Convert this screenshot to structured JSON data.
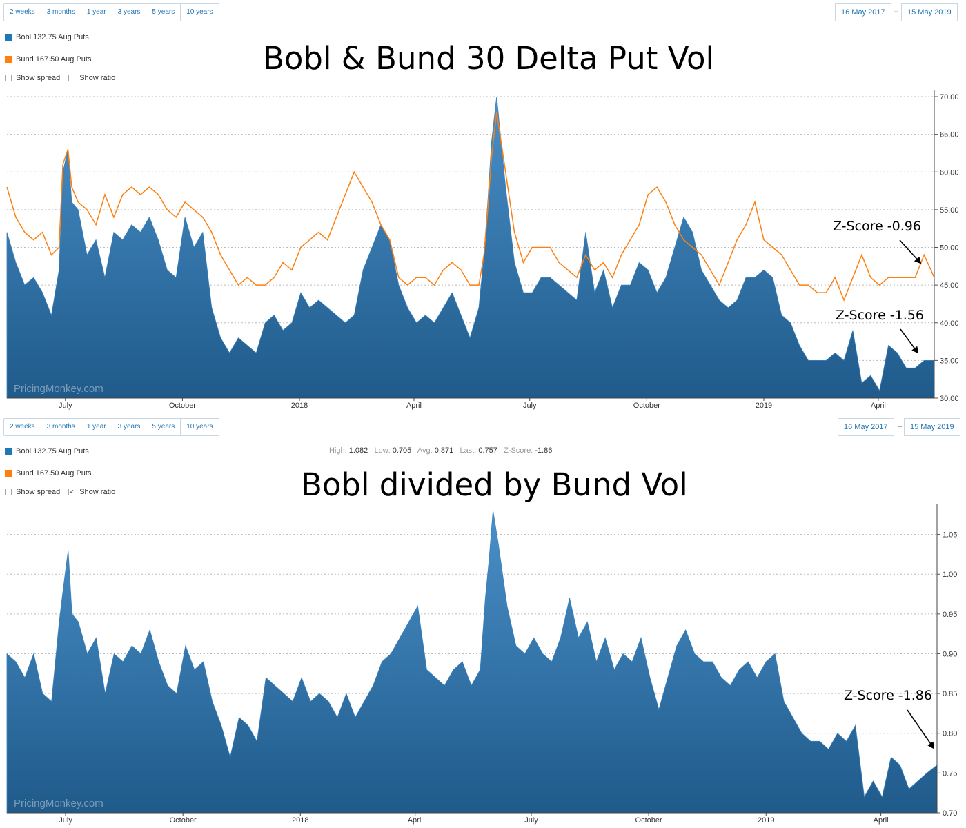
{
  "range_buttons": [
    "2 weeks",
    "3 months",
    "1 year",
    "3 years",
    "5 years",
    "10 years"
  ],
  "dates": {
    "from": "16 May 2017",
    "separator": "–",
    "to": "15 May 2019"
  },
  "legend": [
    {
      "label": "Bobl 132.75 Aug Puts",
      "color": "#1f77b4"
    },
    {
      "label": "Bund 167.50 Aug Puts",
      "color": "#ff7f0e"
    }
  ],
  "checkboxes": {
    "show_spread": "Show spread",
    "show_ratio": "Show ratio",
    "top_spread_checked": false,
    "top_ratio_checked": false,
    "bottom_spread_checked": false,
    "bottom_ratio_checked": true
  },
  "stats": {
    "high_label": "High:",
    "high": "1.082",
    "low_label": "Low:",
    "low": "0.705",
    "avg_label": "Avg:",
    "avg": "0.871",
    "last_label": "Last:",
    "last": "0.757",
    "z_label": "Z-Score:",
    "z": "-1.86"
  },
  "watermark": "PricingMonkey.com",
  "colors": {
    "area_top": "#4a90c9",
    "area_bottom": "#1f5a8a",
    "bund_line": "#ff7f0e",
    "axis": "#555555"
  },
  "chart_data": [
    {
      "type": "area",
      "title": "Bobl & Bund 30 Delta Put Vol",
      "x_tick_labels": [
        "July",
        "October",
        "2018",
        "April",
        "July",
        "October",
        "2019",
        "April"
      ],
      "x_tick_dates": [
        "2017-07-01",
        "2017-10-01",
        "2018-01-01",
        "2018-04-01",
        "2018-07-01",
        "2018-10-01",
        "2019-01-01",
        "2019-04-01"
      ],
      "x_range": [
        "2017-05-16",
        "2019-05-15"
      ],
      "y_ticks": [
        "30.00",
        "35.00",
        "40.00",
        "45.00",
        "50.00",
        "55.00",
        "60.00",
        "65.00",
        "70.00"
      ],
      "ylim": [
        30,
        70
      ],
      "grid": true,
      "annotations": [
        {
          "text": "Z-Score -0.96"
        },
        {
          "text": "Z-Score -1.56"
        }
      ],
      "series": [
        {
          "name": "Bobl 132.75 Aug Puts",
          "kind": "area",
          "dates": [
            "2017-05-16",
            "2017-05-23",
            "2017-05-30",
            "2017-06-06",
            "2017-06-13",
            "2017-06-20",
            "2017-06-26",
            "2017-06-29",
            "2017-07-03",
            "2017-07-06",
            "2017-07-11",
            "2017-07-18",
            "2017-07-25",
            "2017-08-01",
            "2017-08-08",
            "2017-08-15",
            "2017-08-22",
            "2017-08-29",
            "2017-09-05",
            "2017-09-12",
            "2017-09-19",
            "2017-09-26",
            "2017-10-03",
            "2017-10-10",
            "2017-10-17",
            "2017-10-24",
            "2017-10-31",
            "2017-11-07",
            "2017-11-14",
            "2017-11-21",
            "2017-11-28",
            "2017-12-05",
            "2017-12-12",
            "2017-12-19",
            "2017-12-26",
            "2018-01-02",
            "2018-01-09",
            "2018-01-16",
            "2018-01-23",
            "2018-01-30",
            "2018-02-06",
            "2018-02-13",
            "2018-02-20",
            "2018-02-27",
            "2018-03-06",
            "2018-03-13",
            "2018-03-20",
            "2018-03-27",
            "2018-04-03",
            "2018-04-10",
            "2018-04-17",
            "2018-04-24",
            "2018-05-01",
            "2018-05-08",
            "2018-05-15",
            "2018-05-22",
            "2018-05-26",
            "2018-05-29",
            "2018-06-01",
            "2018-06-05",
            "2018-06-12",
            "2018-06-19",
            "2018-06-26",
            "2018-07-03",
            "2018-07-10",
            "2018-07-17",
            "2018-07-24",
            "2018-07-31",
            "2018-08-07",
            "2018-08-14",
            "2018-08-21",
            "2018-08-28",
            "2018-09-04",
            "2018-09-11",
            "2018-09-18",
            "2018-09-25",
            "2018-10-02",
            "2018-10-09",
            "2018-10-16",
            "2018-10-23",
            "2018-10-30",
            "2018-11-06",
            "2018-11-13",
            "2018-11-20",
            "2018-11-27",
            "2018-12-04",
            "2018-12-11",
            "2018-12-18",
            "2018-12-25",
            "2019-01-01",
            "2019-01-08",
            "2019-01-15",
            "2019-01-22",
            "2019-01-29",
            "2019-02-05",
            "2019-02-12",
            "2019-02-19",
            "2019-02-26",
            "2019-03-05",
            "2019-03-12",
            "2019-03-19",
            "2019-03-26",
            "2019-04-02",
            "2019-04-09",
            "2019-04-16",
            "2019-04-23",
            "2019-04-30",
            "2019-05-07",
            "2019-05-15"
          ],
          "values": [
            52,
            48,
            45,
            46,
            44,
            41,
            47,
            60,
            63,
            56,
            55,
            49,
            51,
            46,
            52,
            51,
            53,
            52,
            54,
            51,
            47,
            46,
            54,
            50,
            52,
            42,
            38,
            36,
            38,
            37,
            36,
            40,
            41,
            39,
            40,
            44,
            42,
            43,
            42,
            41,
            40,
            41,
            47,
            50,
            53,
            51,
            45,
            42,
            40,
            41,
            40,
            42,
            44,
            41,
            38,
            42,
            49,
            56,
            64,
            70,
            58,
            48,
            44,
            44,
            46,
            46,
            45,
            44,
            43,
            52,
            44,
            47,
            42,
            45,
            45,
            48,
            47,
            44,
            46,
            50,
            54,
            52,
            47,
            45,
            43,
            42,
            43,
            46,
            46,
            47,
            46,
            41,
            40,
            37,
            35,
            35,
            35,
            36,
            35,
            39,
            32,
            33,
            31,
            37,
            36,
            34,
            34,
            35,
            35
          ]
        },
        {
          "name": "Bund 167.50 Aug Puts",
          "kind": "line",
          "dates": [
            "2017-05-16",
            "2017-05-23",
            "2017-05-30",
            "2017-06-06",
            "2017-06-13",
            "2017-06-20",
            "2017-06-26",
            "2017-06-29",
            "2017-07-03",
            "2017-07-06",
            "2017-07-11",
            "2017-07-18",
            "2017-07-25",
            "2017-08-01",
            "2017-08-08",
            "2017-08-15",
            "2017-08-22",
            "2017-08-29",
            "2017-09-05",
            "2017-09-12",
            "2017-09-19",
            "2017-09-26",
            "2017-10-03",
            "2017-10-10",
            "2017-10-17",
            "2017-10-24",
            "2017-10-31",
            "2017-11-07",
            "2017-11-14",
            "2017-11-21",
            "2017-11-28",
            "2017-12-05",
            "2017-12-12",
            "2017-12-19",
            "2017-12-26",
            "2018-01-02",
            "2018-01-09",
            "2018-01-16",
            "2018-01-23",
            "2018-01-30",
            "2018-02-06",
            "2018-02-13",
            "2018-02-20",
            "2018-02-27",
            "2018-03-06",
            "2018-03-13",
            "2018-03-20",
            "2018-03-27",
            "2018-04-03",
            "2018-04-10",
            "2018-04-17",
            "2018-04-24",
            "2018-05-01",
            "2018-05-08",
            "2018-05-15",
            "2018-05-22",
            "2018-05-26",
            "2018-05-29",
            "2018-06-01",
            "2018-06-05",
            "2018-06-12",
            "2018-06-19",
            "2018-06-26",
            "2018-07-03",
            "2018-07-10",
            "2018-07-17",
            "2018-07-24",
            "2018-07-31",
            "2018-08-07",
            "2018-08-14",
            "2018-08-21",
            "2018-08-28",
            "2018-09-04",
            "2018-09-11",
            "2018-09-18",
            "2018-09-25",
            "2018-10-02",
            "2018-10-09",
            "2018-10-16",
            "2018-10-23",
            "2018-10-30",
            "2018-11-06",
            "2018-11-13",
            "2018-11-20",
            "2018-11-27",
            "2018-12-04",
            "2018-12-11",
            "2018-12-18",
            "2018-12-25",
            "2019-01-01",
            "2019-01-08",
            "2019-01-15",
            "2019-01-22",
            "2019-01-29",
            "2019-02-05",
            "2019-02-12",
            "2019-02-19",
            "2019-02-26",
            "2019-03-05",
            "2019-03-12",
            "2019-03-19",
            "2019-03-26",
            "2019-04-02",
            "2019-04-09",
            "2019-04-16",
            "2019-04-23",
            "2019-04-30",
            "2019-05-07",
            "2019-05-15"
          ],
          "values": [
            58,
            54,
            52,
            51,
            52,
            49,
            50,
            61,
            63,
            58,
            56,
            55,
            53,
            57,
            54,
            57,
            58,
            57,
            58,
            57,
            55,
            54,
            56,
            55,
            54,
            52,
            49,
            47,
            45,
            46,
            45,
            45,
            46,
            48,
            47,
            50,
            51,
            52,
            51,
            54,
            57,
            60,
            58,
            56,
            53,
            51,
            46,
            45,
            46,
            46,
            45,
            47,
            48,
            47,
            45,
            45,
            49,
            55,
            62,
            68,
            60,
            52,
            48,
            50,
            50,
            50,
            48,
            47,
            46,
            49,
            47,
            48,
            46,
            49,
            51,
            53,
            57,
            58,
            56,
            53,
            51,
            50,
            49,
            47,
            45,
            48,
            51,
            53,
            56,
            51,
            50,
            49,
            47,
            45,
            45,
            44,
            44,
            46,
            43,
            46,
            49,
            46,
            45,
            46,
            46,
            46,
            46,
            49,
            46
          ]
        }
      ]
    },
    {
      "type": "area",
      "title": "Bobl divided by Bund Vol",
      "x_tick_labels": [
        "July",
        "October",
        "2018",
        "April",
        "July",
        "October",
        "2019",
        "April"
      ],
      "x_tick_dates": [
        "2017-07-01",
        "2017-10-01",
        "2018-01-01",
        "2018-04-01",
        "2018-07-01",
        "2018-10-01",
        "2019-01-01",
        "2019-04-01"
      ],
      "x_range": [
        "2017-05-16",
        "2019-05-15"
      ],
      "y_ticks": [
        "0.70",
        "0.75",
        "0.80",
        "0.85",
        "0.90",
        "0.95",
        "1.00",
        "1.05"
      ],
      "ylim": [
        0.7,
        1.08
      ],
      "grid": true,
      "annotations": [
        {
          "text": "Z-Score -1.86"
        }
      ],
      "series": [
        {
          "name": "Bobl 132.75 Aug Puts",
          "kind": "area",
          "dates": [
            "2017-05-16",
            "2017-05-23",
            "2017-05-30",
            "2017-06-06",
            "2017-06-13",
            "2017-06-20",
            "2017-06-26",
            "2017-06-29",
            "2017-07-03",
            "2017-07-06",
            "2017-07-11",
            "2017-07-18",
            "2017-07-25",
            "2017-08-01",
            "2017-08-08",
            "2017-08-15",
            "2017-08-22",
            "2017-08-29",
            "2017-09-05",
            "2017-09-12",
            "2017-09-19",
            "2017-09-26",
            "2017-10-03",
            "2017-10-10",
            "2017-10-17",
            "2017-10-24",
            "2017-10-31",
            "2017-11-07",
            "2017-11-14",
            "2017-11-21",
            "2017-11-28",
            "2017-12-05",
            "2017-12-12",
            "2017-12-19",
            "2017-12-26",
            "2018-01-02",
            "2018-01-09",
            "2018-01-16",
            "2018-01-23",
            "2018-01-30",
            "2018-02-06",
            "2018-02-13",
            "2018-02-20",
            "2018-02-27",
            "2018-03-06",
            "2018-03-13",
            "2018-03-20",
            "2018-03-27",
            "2018-04-03",
            "2018-04-10",
            "2018-04-17",
            "2018-04-24",
            "2018-05-01",
            "2018-05-08",
            "2018-05-15",
            "2018-05-22",
            "2018-05-26",
            "2018-05-29",
            "2018-06-01",
            "2018-06-05",
            "2018-06-12",
            "2018-06-19",
            "2018-06-26",
            "2018-07-03",
            "2018-07-10",
            "2018-07-17",
            "2018-07-24",
            "2018-07-31",
            "2018-08-07",
            "2018-08-14",
            "2018-08-21",
            "2018-08-28",
            "2018-09-04",
            "2018-09-11",
            "2018-09-18",
            "2018-09-25",
            "2018-10-02",
            "2018-10-09",
            "2018-10-16",
            "2018-10-23",
            "2018-10-30",
            "2018-11-06",
            "2018-11-13",
            "2018-11-20",
            "2018-11-27",
            "2018-12-04",
            "2018-12-11",
            "2018-12-18",
            "2018-12-25",
            "2019-01-01",
            "2019-01-08",
            "2019-01-15",
            "2019-01-22",
            "2019-01-29",
            "2019-02-05",
            "2019-02-12",
            "2019-02-19",
            "2019-02-26",
            "2019-03-05",
            "2019-03-12",
            "2019-03-19",
            "2019-03-26",
            "2019-04-02",
            "2019-04-09",
            "2019-04-16",
            "2019-04-23",
            "2019-04-30",
            "2019-05-07",
            "2019-05-15"
          ],
          "values": [
            0.9,
            0.89,
            0.87,
            0.9,
            0.85,
            0.84,
            0.94,
            0.98,
            1.03,
            0.95,
            0.94,
            0.9,
            0.92,
            0.85,
            0.9,
            0.89,
            0.91,
            0.9,
            0.93,
            0.89,
            0.86,
            0.85,
            0.91,
            0.88,
            0.89,
            0.84,
            0.81,
            0.77,
            0.82,
            0.81,
            0.79,
            0.87,
            0.86,
            0.85,
            0.84,
            0.87,
            0.84,
            0.85,
            0.84,
            0.82,
            0.85,
            0.82,
            0.84,
            0.86,
            0.89,
            0.9,
            0.92,
            0.94,
            0.96,
            0.88,
            0.87,
            0.86,
            0.88,
            0.89,
            0.86,
            0.88,
            0.97,
            1.02,
            1.08,
            1.04,
            0.96,
            0.91,
            0.9,
            0.92,
            0.9,
            0.89,
            0.92,
            0.97,
            0.92,
            0.94,
            0.89,
            0.92,
            0.88,
            0.9,
            0.89,
            0.92,
            0.87,
            0.83,
            0.87,
            0.91,
            0.93,
            0.9,
            0.89,
            0.89,
            0.87,
            0.86,
            0.88,
            0.89,
            0.87,
            0.89,
            0.9,
            0.84,
            0.82,
            0.8,
            0.79,
            0.79,
            0.78,
            0.8,
            0.79,
            0.81,
            0.72,
            0.74,
            0.72,
            0.77,
            0.76,
            0.73,
            0.74,
            0.75,
            0.76
          ]
        }
      ]
    }
  ]
}
